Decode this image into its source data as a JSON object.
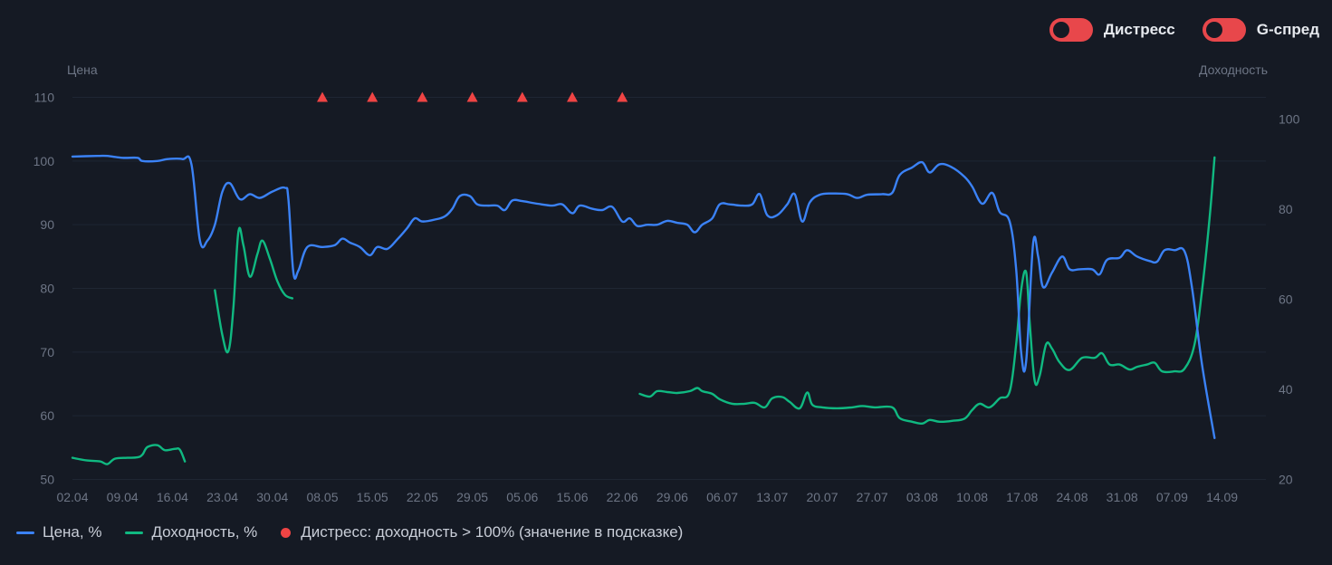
{
  "toggles": [
    {
      "label": "Дистресс",
      "on": true
    },
    {
      "label": "G-спред",
      "on": true
    }
  ],
  "colors": {
    "background": "#151a24",
    "grid": "#1f2633",
    "price": "#3b82f6",
    "yield": "#10b981",
    "distress": "#ef4444",
    "toggle": "#e8474b",
    "axis_text": "#6d7585"
  },
  "chart_data": {
    "type": "line",
    "left_axis": {
      "label": "Цена",
      "ticks": [
        50,
        60,
        70,
        80,
        90,
        100,
        110
      ],
      "range": [
        50,
        110
      ]
    },
    "right_axis": {
      "label": "Доходность",
      "ticks": [
        20,
        40,
        60,
        80,
        100
      ],
      "range": [
        20,
        100
      ]
    },
    "x_ticks": [
      "02.04",
      "09.04",
      "16.04",
      "23.04",
      "30.04",
      "08.05",
      "15.05",
      "22.05",
      "29.05",
      "05.06",
      "15.06",
      "22.06",
      "29.06",
      "06.07",
      "13.07",
      "20.07",
      "27.07",
      "03.08",
      "10.08",
      "17.08",
      "24.08",
      "31.08",
      "07.09",
      "14.09"
    ],
    "x_range": [
      0,
      24
    ],
    "series": [
      {
        "name": "Цена, %",
        "axis": "left",
        "color": "#3b82f6",
        "points": [
          [
            0,
            100.7
          ],
          [
            0.5,
            100.8
          ],
          [
            0.7,
            100.8
          ],
          [
            1,
            100.5
          ],
          [
            1.3,
            100.5
          ],
          [
            1.4,
            100
          ],
          [
            1.7,
            100
          ],
          [
            1.9,
            100.3
          ],
          [
            2.2,
            100.3
          ],
          [
            2.38,
            99.5
          ],
          [
            2.55,
            87.5
          ],
          [
            2.7,
            87.5
          ],
          [
            2.85,
            90
          ],
          [
            3.0,
            95.2
          ],
          [
            3.15,
            96.5
          ],
          [
            3.35,
            94
          ],
          [
            3.55,
            94.8
          ],
          [
            3.75,
            94.2
          ],
          [
            4.0,
            95.2
          ],
          [
            4.25,
            95.8
          ],
          [
            4.32,
            94
          ],
          [
            4.42,
            82.5
          ],
          [
            4.52,
            82.8
          ],
          [
            4.7,
            86.5
          ],
          [
            5.0,
            86.5
          ],
          [
            5.25,
            86.8
          ],
          [
            5.4,
            87.8
          ],
          [
            5.55,
            87.2
          ],
          [
            5.75,
            86.5
          ],
          [
            5.95,
            85.2
          ],
          [
            6.1,
            86.5
          ],
          [
            6.3,
            86.2
          ],
          [
            6.5,
            87.7
          ],
          [
            6.7,
            89.5
          ],
          [
            6.85,
            91
          ],
          [
            7.0,
            90.5
          ],
          [
            7.25,
            90.8
          ],
          [
            7.45,
            91.3
          ],
          [
            7.6,
            92.5
          ],
          [
            7.75,
            94.5
          ],
          [
            7.95,
            94.5
          ],
          [
            8.1,
            93.2
          ],
          [
            8.3,
            93
          ],
          [
            8.5,
            93
          ],
          [
            8.65,
            92.3
          ],
          [
            8.8,
            93.8
          ],
          [
            9.0,
            93.7
          ],
          [
            9.3,
            93.3
          ],
          [
            9.6,
            93
          ],
          [
            9.8,
            93.2
          ],
          [
            10.0,
            91.8
          ],
          [
            10.15,
            93
          ],
          [
            10.4,
            92.5
          ],
          [
            10.6,
            92.3
          ],
          [
            10.8,
            92.8
          ],
          [
            11.0,
            90.5
          ],
          [
            11.15,
            91
          ],
          [
            11.3,
            89.8
          ],
          [
            11.5,
            90
          ],
          [
            11.7,
            90
          ],
          [
            11.9,
            90.6
          ],
          [
            12.1,
            90.3
          ],
          [
            12.3,
            90
          ],
          [
            12.45,
            88.8
          ],
          [
            12.6,
            90
          ],
          [
            12.8,
            91
          ],
          [
            12.95,
            93.2
          ],
          [
            13.15,
            93.2
          ],
          [
            13.4,
            93
          ],
          [
            13.6,
            93.2
          ],
          [
            13.75,
            94.8
          ],
          [
            13.9,
            91.5
          ],
          [
            14.1,
            91.5
          ],
          [
            14.3,
            93.2
          ],
          [
            14.45,
            94.8
          ],
          [
            14.6,
            90.5
          ],
          [
            14.75,
            93.5
          ],
          [
            14.95,
            94.7
          ],
          [
            15.2,
            94.9
          ],
          [
            15.5,
            94.8
          ],
          [
            15.7,
            94.2
          ],
          [
            15.9,
            94.7
          ],
          [
            16.2,
            94.8
          ],
          [
            16.4,
            95
          ],
          [
            16.55,
            97.8
          ],
          [
            16.8,
            99
          ],
          [
            17.0,
            99.8
          ],
          [
            17.15,
            98.2
          ],
          [
            17.35,
            99.5
          ],
          [
            17.6,
            99
          ],
          [
            17.85,
            97.5
          ],
          [
            18.0,
            96
          ],
          [
            18.2,
            93.3
          ],
          [
            18.4,
            95
          ],
          [
            18.55,
            92
          ],
          [
            18.75,
            90.5
          ],
          [
            18.88,
            83
          ],
          [
            18.98,
            70
          ],
          [
            19.08,
            68.5
          ],
          [
            19.22,
            87
          ],
          [
            19.32,
            85
          ],
          [
            19.42,
            80.2
          ],
          [
            19.6,
            82.5
          ],
          [
            19.8,
            85
          ],
          [
            19.95,
            83
          ],
          [
            20.15,
            83
          ],
          [
            20.4,
            83
          ],
          [
            20.55,
            82.2
          ],
          [
            20.7,
            84.5
          ],
          [
            20.95,
            84.8
          ],
          [
            21.1,
            86
          ],
          [
            21.3,
            85
          ],
          [
            21.55,
            84.3
          ],
          [
            21.7,
            84.2
          ],
          [
            21.85,
            86
          ],
          [
            22.05,
            86
          ],
          [
            22.25,
            85.8
          ],
          [
            22.4,
            80
          ],
          [
            22.6,
            68
          ],
          [
            22.85,
            56.5
          ]
        ]
      },
      {
        "name": "Доходность, %",
        "axis": "right",
        "color": "#10b981",
        "segments": [
          [
            [
              0,
              24.8
            ],
            [
              0.3,
              24.2
            ],
            [
              0.55,
              24
            ],
            [
              0.7,
              23.4
            ],
            [
              0.85,
              24.6
            ],
            [
              1.1,
              24.8
            ],
            [
              1.3,
              24.9
            ],
            [
              1.4,
              25.5
            ],
            [
              1.5,
              27.2
            ],
            [
              1.7,
              27.6
            ],
            [
              1.85,
              26.5
            ],
            [
              2.05,
              26.8
            ],
            [
              2.15,
              26.6
            ],
            [
              2.25,
              24
            ]
          ],
          [
            [
              2.85,
              62
            ],
            [
              3.0,
              52
            ],
            [
              3.12,
              48.5
            ],
            [
              3.22,
              58
            ],
            [
              3.32,
              75
            ],
            [
              3.42,
              72
            ],
            [
              3.55,
              65
            ],
            [
              3.7,
              70
            ],
            [
              3.8,
              73
            ],
            [
              3.95,
              69
            ],
            [
              4.1,
              64
            ],
            [
              4.25,
              61
            ],
            [
              4.4,
              60.2
            ]
          ],
          [
            [
              11.35,
              39
            ],
            [
              11.55,
              38.4
            ],
            [
              11.7,
              39.6
            ],
            [
              11.9,
              39.4
            ],
            [
              12.1,
              39.2
            ],
            [
              12.35,
              39.6
            ],
            [
              12.5,
              40.3
            ],
            [
              12.6,
              39.6
            ],
            [
              12.8,
              39
            ],
            [
              12.95,
              37.8
            ],
            [
              13.2,
              36.8
            ],
            [
              13.45,
              36.8
            ],
            [
              13.65,
              37
            ],
            [
              13.85,
              36
            ],
            [
              14.0,
              38
            ],
            [
              14.2,
              38.3
            ],
            [
              14.35,
              37.2
            ],
            [
              14.55,
              35.8
            ],
            [
              14.7,
              39.3
            ],
            [
              14.8,
              36.6
            ],
            [
              15.0,
              36
            ],
            [
              15.3,
              35.8
            ],
            [
              15.6,
              36
            ],
            [
              15.8,
              36.3
            ],
            [
              16.05,
              36
            ],
            [
              16.4,
              36
            ],
            [
              16.55,
              33.6
            ],
            [
              16.8,
              32.8
            ],
            [
              17.0,
              32.4
            ],
            [
              17.15,
              33.2
            ],
            [
              17.35,
              32.8
            ],
            [
              17.6,
              33
            ],
            [
              17.85,
              33.5
            ],
            [
              18.0,
              35.4
            ],
            [
              18.15,
              36.8
            ],
            [
              18.35,
              36
            ],
            [
              18.55,
              38
            ],
            [
              18.75,
              39.5
            ],
            [
              18.88,
              50
            ],
            [
              18.98,
              62
            ],
            [
              19.08,
              66
            ],
            [
              19.15,
              55
            ],
            [
              19.25,
              42
            ],
            [
              19.35,
              43
            ],
            [
              19.48,
              50
            ],
            [
              19.6,
              49
            ],
            [
              19.75,
              46
            ],
            [
              19.95,
              44.3
            ],
            [
              20.2,
              47
            ],
            [
              20.45,
              47
            ],
            [
              20.6,
              48
            ],
            [
              20.75,
              45.5
            ],
            [
              20.95,
              45.5
            ],
            [
              21.15,
              44.4
            ],
            [
              21.3,
              45
            ],
            [
              21.5,
              45.5
            ],
            [
              21.65,
              45.9
            ],
            [
              21.8,
              44
            ],
            [
              22.05,
              44
            ],
            [
              22.25,
              44.6
            ],
            [
              22.45,
              50
            ],
            [
              22.6,
              62
            ],
            [
              22.75,
              78
            ],
            [
              22.85,
              91.5
            ]
          ]
        ]
      }
    ],
    "distress_markers": [
      5.0,
      6.0,
      7.0,
      8.0,
      9.0,
      10.0,
      11.0
    ],
    "distress_marker_value": 110,
    "legend": [
      {
        "label": "Цена, %",
        "kind": "line",
        "color": "#3b82f6"
      },
      {
        "label": "Доходность, %",
        "kind": "line",
        "color": "#10b981"
      },
      {
        "label": "Дистресс: доходность > 100% (значение в подсказке)",
        "kind": "dot",
        "color": "#ef4444"
      }
    ],
    "legend_position": "bottom-left",
    "grid": true
  }
}
